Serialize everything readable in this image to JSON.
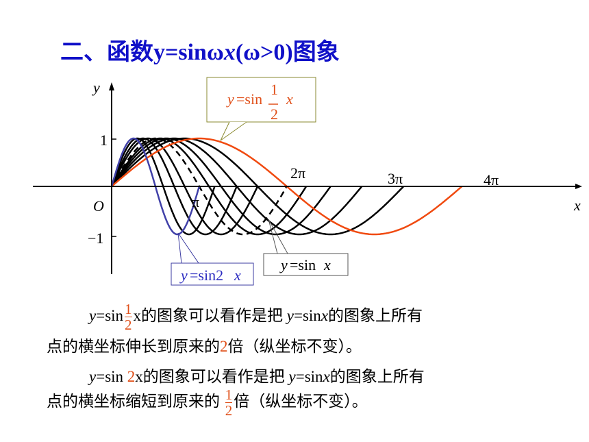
{
  "title": [
    "二、函数y=sinω",
    "x",
    "(ω>0)图象"
  ],
  "graph": {
    "axis_x": "x",
    "axis_y": "y",
    "origin": "O",
    "tick_one": "1",
    "tick_minus_one": "−1",
    "tick_pi": "π",
    "tick_two_pi": "2π",
    "tick_three_pi": "3π",
    "tick_four_pi": "4π",
    "callout_half": {
      "y": "y",
      "eq": "=sin",
      "num": "1",
      "den": "2",
      "x": "x"
    },
    "callout_sinx": {
      "y": "y",
      "eq": "=sin",
      "x": "x"
    },
    "callout_sin2x": {
      "y": "y",
      "eq": "=sin2",
      "x": "x"
    }
  },
  "paragraphs": [
    {
      "line1": {
        "y": "y",
        "eq": "=sin",
        "num": "1",
        "den": "2",
        "rest": "x的图象可以看作是把",
        "y2": "y",
        "eq2": "=sin",
        "x2": "x",
        "tail": "的图象上所有"
      },
      "line2": {
        "pre": "点的横坐标伸长到原来的",
        "red": "2",
        "post": "倍（纵坐标不变）。"
      }
    },
    {
      "line1": {
        "y": "y",
        "eq": "=sin ",
        "red": "2",
        "rest": "x的图象可以看作是把",
        "y2": "y",
        "eq2": "=sin",
        "x2": "x",
        "tail": "的图象上所有"
      },
      "line2": {
        "pre": "点的横坐标缩短到原来的",
        "num": "1",
        "den": "2",
        "post": "倍（纵坐标不变）。"
      }
    }
  ]
}
